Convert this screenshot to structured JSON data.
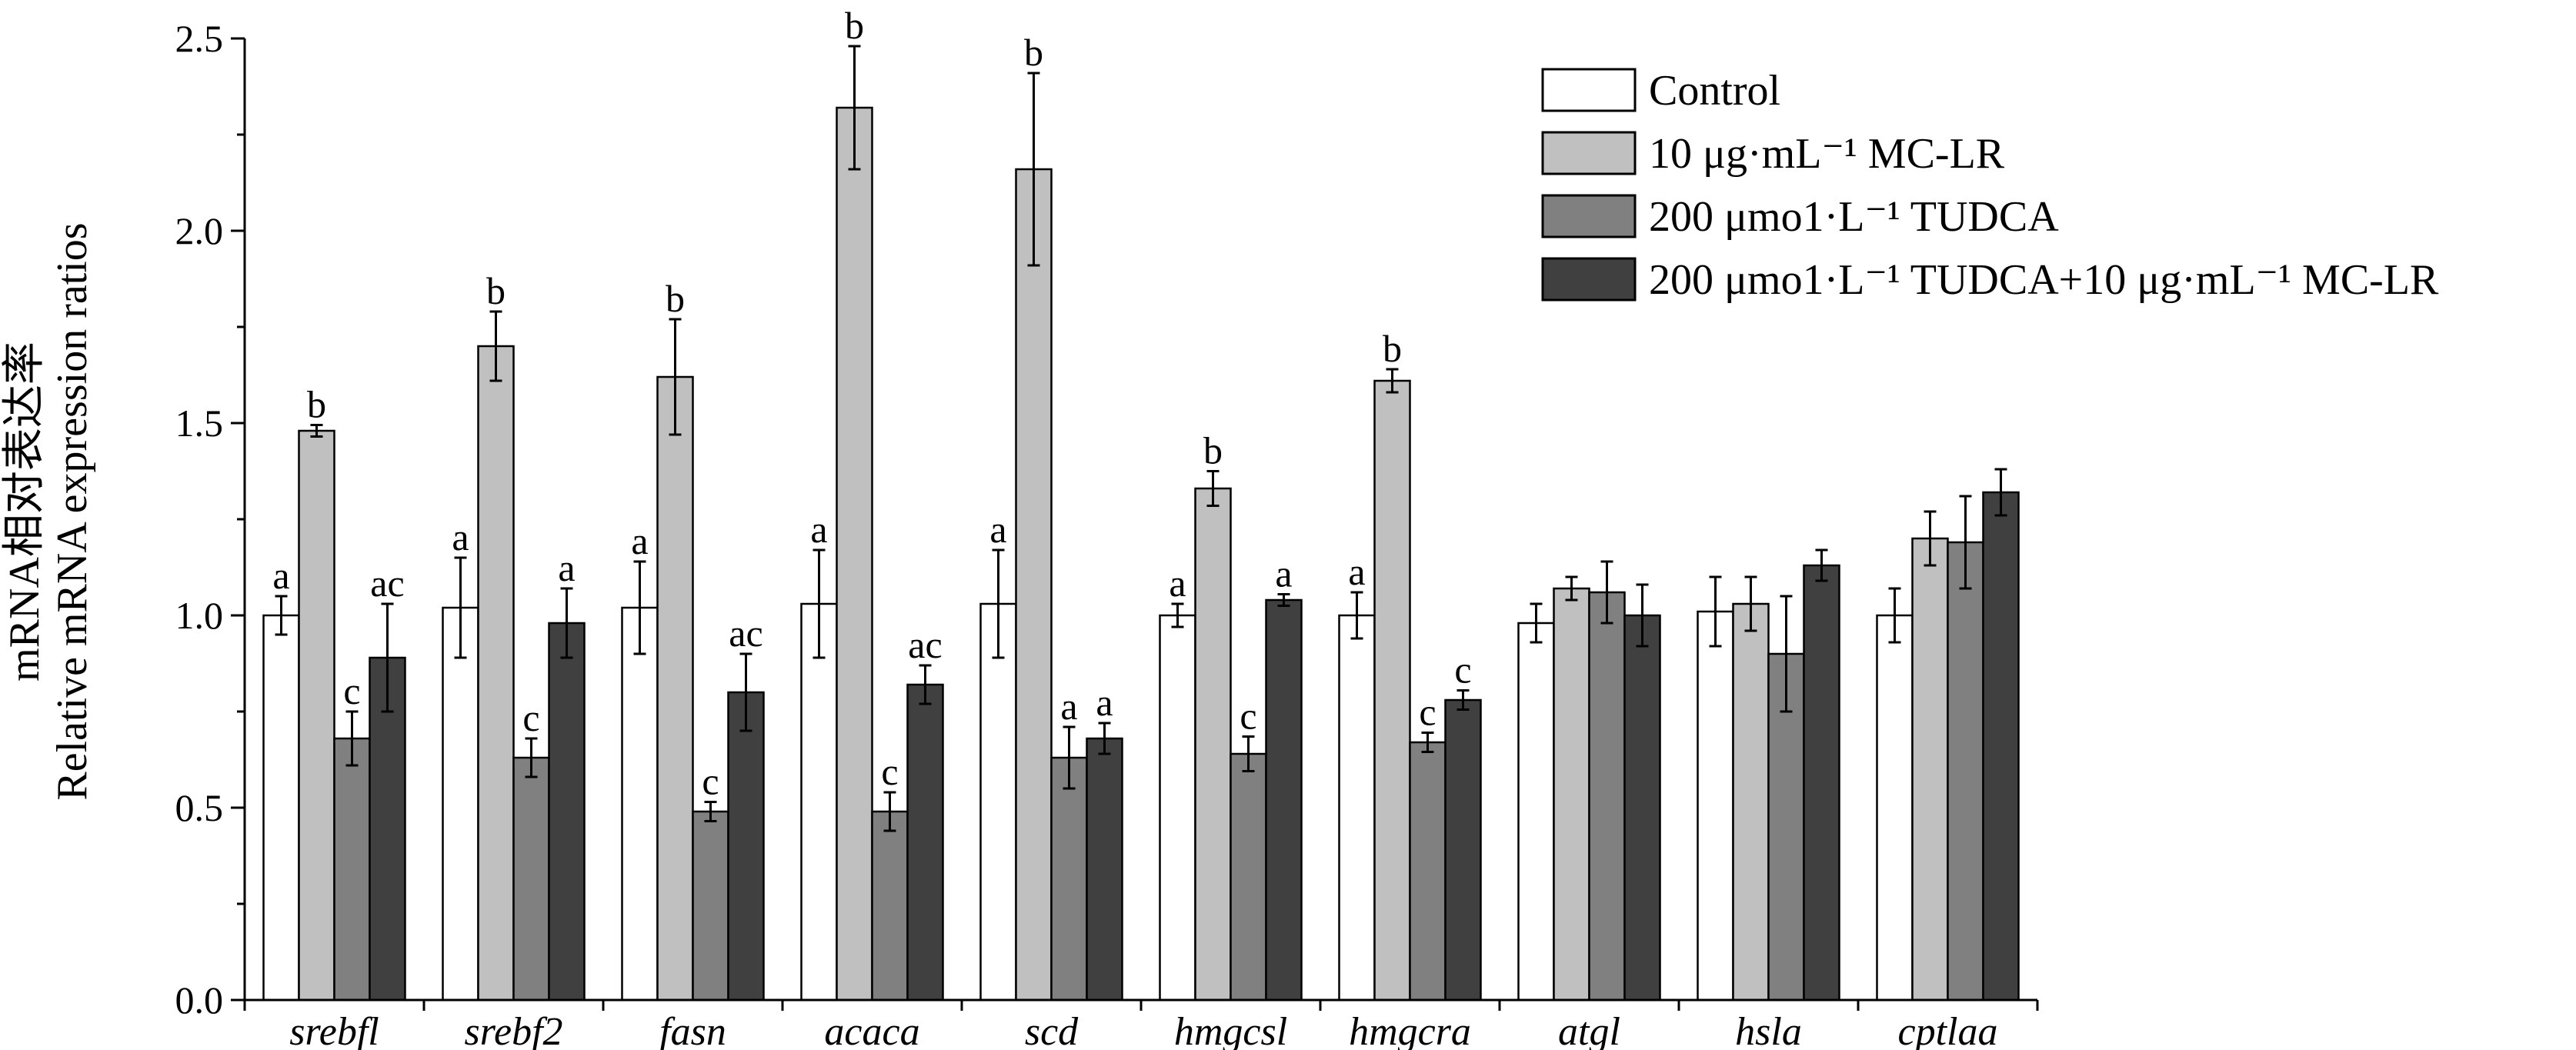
{
  "chart_data": {
    "type": "bar",
    "ylabel_cn": "mRNA相对表达率",
    "ylabel_en": "Relative mRNA expression ratios",
    "ylim": [
      0,
      2.5
    ],
    "yticks": [
      "0.0",
      "0.5",
      "1.0",
      "1.5",
      "2.0",
      "2.5"
    ],
    "ytick_values": [
      0,
      0.5,
      1.0,
      1.5,
      2.0,
      2.5
    ],
    "categories": [
      "srebfl",
      "srebf2",
      "fasn",
      "acaca",
      "scd",
      "hmgcsl",
      "hmgcra",
      "atgl",
      "hsla",
      "cptlaa"
    ],
    "series": [
      {
        "name": "Control",
        "color": "#ffffff",
        "values": [
          1.0,
          1.02,
          1.02,
          1.03,
          1.03,
          1.0,
          1.0,
          0.98,
          1.01,
          1.0
        ],
        "errors": [
          0.05,
          0.13,
          0.12,
          0.14,
          0.14,
          0.03,
          0.06,
          0.05,
          0.09,
          0.07
        ],
        "labels": [
          "a",
          "a",
          "a",
          "a",
          "a",
          "a",
          "a",
          "",
          "",
          ""
        ]
      },
      {
        "name": "10 μg·mL⁻¹ MC-LR",
        "color": "#c0c0c0",
        "values": [
          1.48,
          1.7,
          1.62,
          2.32,
          2.16,
          1.33,
          1.61,
          1.07,
          1.03,
          1.2
        ],
        "errors": [
          0.015,
          0.09,
          0.15,
          0.16,
          0.25,
          0.045,
          0.03,
          0.03,
          0.07,
          0.07
        ],
        "labels": [
          "b",
          "b",
          "b",
          "b",
          "b",
          "b",
          "b",
          "",
          "",
          ""
        ]
      },
      {
        "name": "200 μmo1·L⁻¹ TUDCA",
        "color": "#808080",
        "values": [
          0.68,
          0.63,
          0.49,
          0.49,
          0.63,
          0.64,
          0.67,
          1.06,
          0.9,
          1.19
        ],
        "errors": [
          0.07,
          0.05,
          0.025,
          0.05,
          0.08,
          0.045,
          0.025,
          0.08,
          0.15,
          0.12
        ],
        "labels": [
          "c",
          "c",
          "c",
          "c",
          "a",
          "c",
          "c",
          "",
          "",
          ""
        ]
      },
      {
        "name": "200 μmo1·L⁻¹ TUDCA+10 μg·mL⁻¹ MC-LR",
        "color": "#404040",
        "values": [
          0.89,
          0.98,
          0.8,
          0.82,
          0.68,
          1.04,
          0.78,
          1.0,
          1.13,
          1.32
        ],
        "errors": [
          0.14,
          0.09,
          0.1,
          0.05,
          0.04,
          0.015,
          0.025,
          0.08,
          0.04,
          0.06
        ],
        "labels": [
          "ac",
          "a",
          "ac",
          "ac",
          "a",
          "a",
          "c",
          "",
          "",
          ""
        ]
      }
    ],
    "legend_position": "top-right",
    "grid": false
  }
}
